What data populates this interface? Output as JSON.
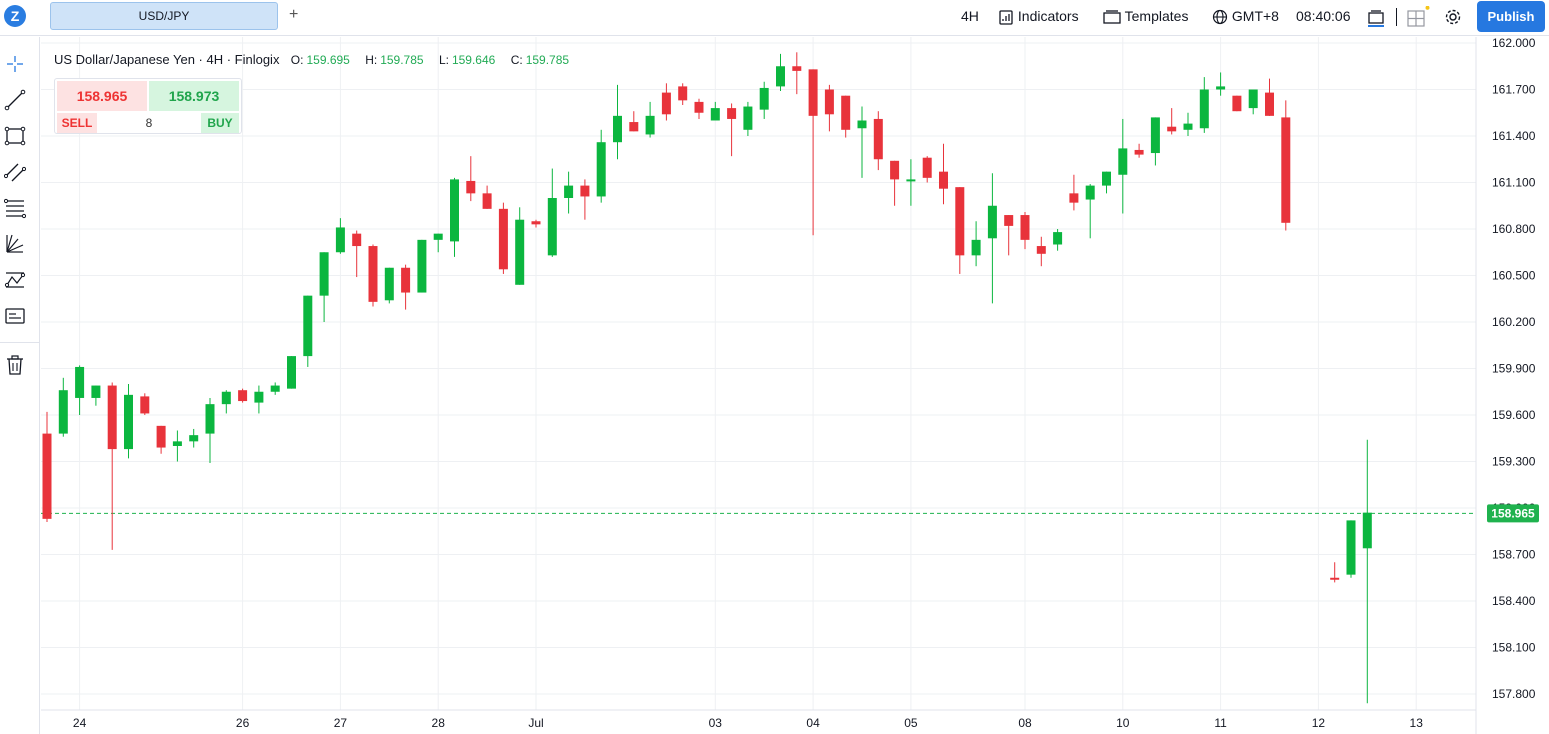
{
  "toolbar": {
    "logo": "Z",
    "symbol": "USD/JPY",
    "add_tab": "+",
    "interval": "4H",
    "indicators": "Indicators",
    "templates": "Templates",
    "timezone": "GMT+8",
    "clock": "08:40:06",
    "publish": "Publish",
    "icons": [
      "indicators-icon",
      "templates-icon",
      "globe-icon",
      "layout-icon",
      "grid-icon",
      "gear-icon"
    ]
  },
  "sidebar": {
    "tools": [
      "crosshair-icon",
      "trend-line-icon",
      "rectangle-icon",
      "channel-icon",
      "fib-levels-icon",
      "gann-fan-icon",
      "pattern-icon",
      "text-note-icon",
      "trash-icon"
    ]
  },
  "legend": {
    "title": "US Dollar/Japanese Yen · 4H · Finlogix",
    "o_label": "O:",
    "o": "159.695",
    "h_label": "H:",
    "h": "159.785",
    "l_label": "L:",
    "l": "159.646",
    "c_label": "C:",
    "c": "159.785"
  },
  "trade": {
    "sell_price": "158.965",
    "buy_price": "158.973",
    "sell": "SELL",
    "buy": "BUY",
    "quantity": "8"
  },
  "colors": {
    "up": "#0bb63f",
    "down": "#e8333b",
    "accent": "#2678e0",
    "price_line": "#1fb24e"
  },
  "chart_data": {
    "type": "candlestick",
    "symbol": "USD/JPY",
    "interval": "4H",
    "ylim": [
      157.72,
      162.0
    ],
    "y_ticks": [
      "162.000",
      "161.700",
      "161.400",
      "161.100",
      "160.800",
      "160.500",
      "160.200",
      "159.900",
      "159.600",
      "159.300",
      "159.000",
      "158.700",
      "158.400",
      "158.100",
      "157.800"
    ],
    "x_labels": [
      {
        "label": "24",
        "bar": 2
      },
      {
        "label": "26",
        "bar": 12
      },
      {
        "label": "27",
        "bar": 18
      },
      {
        "label": "28",
        "bar": 24
      },
      {
        "label": "Jul",
        "bar": 30
      },
      {
        "label": "03",
        "bar": 41
      },
      {
        "label": "04",
        "bar": 47
      },
      {
        "label": "05",
        "bar": 53
      },
      {
        "label": "08",
        "bar": 60
      },
      {
        "label": "10",
        "bar": 66
      },
      {
        "label": "11",
        "bar": 72
      },
      {
        "label": "12",
        "bar": 78
      },
      {
        "label": "13",
        "bar": 84
      }
    ],
    "current_price": 158.965,
    "current_price_label": "158.965",
    "candles": [
      [
        159.48,
        159.62,
        158.91,
        158.93
      ],
      [
        159.48,
        159.84,
        159.46,
        159.76
      ],
      [
        159.71,
        159.92,
        159.6,
        159.91
      ],
      [
        159.71,
        159.79,
        159.66,
        159.79
      ],
      [
        159.79,
        159.81,
        158.73,
        159.38
      ],
      [
        159.38,
        159.8,
        159.32,
        159.73
      ],
      [
        159.72,
        159.74,
        159.6,
        159.61
      ],
      [
        159.53,
        159.53,
        159.35,
        159.39
      ],
      [
        159.4,
        159.5,
        159.3,
        159.43
      ],
      [
        159.43,
        159.51,
        159.39,
        159.47
      ],
      [
        159.48,
        159.71,
        159.29,
        159.67
      ],
      [
        159.67,
        159.76,
        159.61,
        159.75
      ],
      [
        159.76,
        159.77,
        159.68,
        159.69
      ],
      [
        159.68,
        159.79,
        159.61,
        159.75
      ],
      [
        159.75,
        159.81,
        159.73,
        159.79
      ],
      [
        159.77,
        159.98,
        159.77,
        159.98
      ],
      [
        159.98,
        160.37,
        159.91,
        160.37
      ],
      [
        160.37,
        160.44,
        160.2,
        160.65
      ],
      [
        160.65,
        160.87,
        160.64,
        160.81
      ],
      [
        160.77,
        160.79,
        160.49,
        160.69
      ],
      [
        160.69,
        160.7,
        160.3,
        160.33
      ],
      [
        160.34,
        160.55,
        160.32,
        160.55
      ],
      [
        160.55,
        160.57,
        160.28,
        160.39
      ],
      [
        160.39,
        160.73,
        160.39,
        160.73
      ],
      [
        160.73,
        160.75,
        160.65,
        160.77
      ],
      [
        160.72,
        161.13,
        160.62,
        161.12
      ],
      [
        161.11,
        161.27,
        160.98,
        161.03
      ],
      [
        161.03,
        161.08,
        160.93,
        160.93
      ],
      [
        160.93,
        160.97,
        160.51,
        160.54
      ],
      [
        160.44,
        160.94,
        160.44,
        160.86
      ],
      [
        160.85,
        160.86,
        160.81,
        160.83
      ],
      [
        160.63,
        161.19,
        160.62,
        161.0
      ],
      [
        161.0,
        161.17,
        160.9,
        161.08
      ],
      [
        161.08,
        161.12,
        160.86,
        161.01
      ],
      [
        161.01,
        161.44,
        160.97,
        161.36
      ],
      [
        161.36,
        161.73,
        161.25,
        161.53
      ],
      [
        161.49,
        161.56,
        161.44,
        161.43
      ],
      [
        161.41,
        161.62,
        161.39,
        161.53
      ],
      [
        161.68,
        161.74,
        161.5,
        161.54
      ],
      [
        161.72,
        161.74,
        161.6,
        161.63
      ],
      [
        161.62,
        161.64,
        161.51,
        161.55
      ],
      [
        161.5,
        161.62,
        161.5,
        161.58
      ],
      [
        161.58,
        161.61,
        161.27,
        161.51
      ],
      [
        161.44,
        161.62,
        161.4,
        161.59
      ],
      [
        161.57,
        161.75,
        161.51,
        161.71
      ],
      [
        161.72,
        161.93,
        161.69,
        161.85
      ],
      [
        161.85,
        161.94,
        161.67,
        161.82
      ],
      [
        161.83,
        161.78,
        160.76,
        161.53
      ],
      [
        161.7,
        161.73,
        161.43,
        161.54
      ],
      [
        161.66,
        161.64,
        161.39,
        161.44
      ],
      [
        161.45,
        161.59,
        161.13,
        161.5
      ],
      [
        161.51,
        161.56,
        161.18,
        161.25
      ],
      [
        161.24,
        161.22,
        160.95,
        161.12
      ],
      [
        161.12,
        161.25,
        160.95,
        161.12
      ],
      [
        161.26,
        161.27,
        161.1,
        161.13
      ],
      [
        161.17,
        161.35,
        160.96,
        161.06
      ],
      [
        161.07,
        161.07,
        160.51,
        160.63
      ],
      [
        160.63,
        160.85,
        160.56,
        160.73
      ],
      [
        160.74,
        161.16,
        160.32,
        160.95
      ],
      [
        160.89,
        160.89,
        160.63,
        160.82
      ],
      [
        160.89,
        160.91,
        160.67,
        160.73
      ],
      [
        160.69,
        160.75,
        160.56,
        160.64
      ],
      [
        160.7,
        160.8,
        160.66,
        160.78
      ],
      [
        161.03,
        161.15,
        160.92,
        160.97
      ],
      [
        160.99,
        161.09,
        160.74,
        161.08
      ],
      [
        161.08,
        161.15,
        161.03,
        161.17
      ],
      [
        161.15,
        161.51,
        160.9,
        161.32
      ],
      [
        161.31,
        161.35,
        161.26,
        161.28
      ],
      [
        161.29,
        161.49,
        161.21,
        161.52
      ],
      [
        161.46,
        161.58,
        161.41,
        161.43
      ],
      [
        161.44,
        161.55,
        161.4,
        161.48
      ],
      [
        161.45,
        161.78,
        161.42,
        161.7
      ],
      [
        161.7,
        161.81,
        161.66,
        161.72
      ],
      [
        161.66,
        161.62,
        161.56,
        161.56
      ],
      [
        161.58,
        161.7,
        161.54,
        161.7
      ],
      [
        161.68,
        161.77,
        161.53,
        161.53
      ],
      [
        161.52,
        161.63,
        160.79,
        160.84
      ],
      null,
      null,
      [
        158.55,
        158.65,
        158.52,
        158.54
      ],
      [
        158.57,
        158.92,
        158.55,
        158.92
      ],
      [
        158.74,
        159.44,
        157.74,
        158.97
      ]
    ]
  }
}
